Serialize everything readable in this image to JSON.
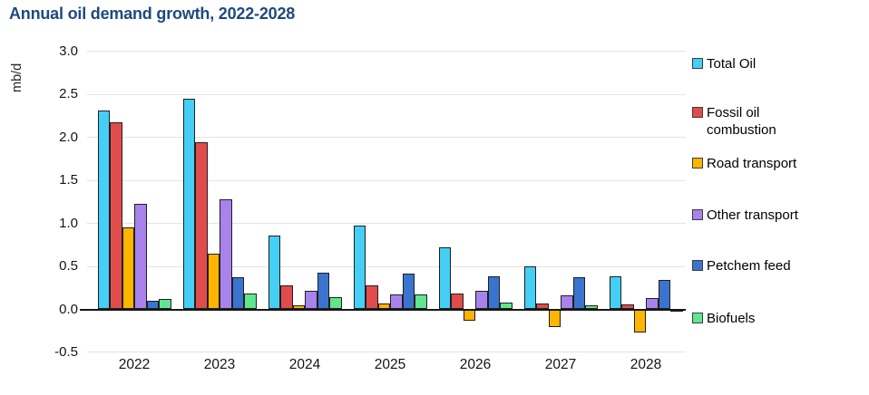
{
  "title": "Annual oil demand growth, 2022-2028",
  "title_color": "#1F497D",
  "chart_data": {
    "type": "bar",
    "title": "Annual oil demand growth, 2022-2028",
    "xlabel": "",
    "ylabel": "mb/d",
    "categories": [
      "2022",
      "2023",
      "2024",
      "2025",
      "2026",
      "2027",
      "2028"
    ],
    "series": [
      {
        "name": "Total Oil",
        "color": "#45CFF5",
        "values": [
          2.31,
          2.45,
          0.86,
          0.97,
          0.72,
          0.5,
          0.39
        ]
      },
      {
        "name": "Fossil oil combustion",
        "color": "#E04C4C",
        "values": [
          2.18,
          1.95,
          0.28,
          0.28,
          0.18,
          0.07,
          0.06
        ]
      },
      {
        "name": "Road transport",
        "color": "#FFB400",
        "values": [
          0.95,
          0.65,
          0.05,
          0.07,
          -0.13,
          -0.21,
          -0.27
        ]
      },
      {
        "name": "Other transport",
        "color": "#A783EB",
        "values": [
          1.23,
          1.28,
          0.22,
          0.17,
          0.22,
          0.16,
          0.13
        ]
      },
      {
        "name": "Petchem feed",
        "color": "#3B74CE",
        "values": [
          0.1,
          0.37,
          0.43,
          0.42,
          0.38,
          0.37,
          0.34
        ]
      },
      {
        "name": "Biofuels",
        "color": "#5FE68E",
        "values": [
          0.12,
          0.18,
          0.14,
          0.17,
          0.08,
          0.05,
          -0.03
        ]
      }
    ],
    "ylim": [
      -0.5,
      3.0
    ],
    "yticks": [
      3.0,
      2.5,
      2.0,
      1.5,
      1.0,
      0.5,
      0.0,
      -0.5
    ],
    "ytick_labels": [
      "3.0",
      "2.5",
      "2.0",
      "1.5",
      "1.0",
      "0.5",
      "0.0",
      "-0.5"
    ],
    "grid": true,
    "legend_position": "right"
  }
}
